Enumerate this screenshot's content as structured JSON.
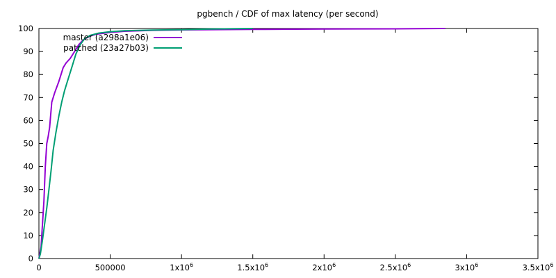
{
  "chart_data": {
    "type": "line",
    "title": "pgbench / CDF of max latency (per second)",
    "xlabel": "",
    "ylabel": "",
    "xlim": [
      0,
      3500000
    ],
    "ylim": [
      0,
      100
    ],
    "grid": false,
    "legend_position": "top-left",
    "x_ticks": [
      {
        "value": 0,
        "base": "0",
        "exp": ""
      },
      {
        "value": 500000,
        "base": "500000",
        "exp": ""
      },
      {
        "value": 1000000,
        "base": "1x10",
        "exp": "6"
      },
      {
        "value": 1500000,
        "base": "1.5x10",
        "exp": "6"
      },
      {
        "value": 2000000,
        "base": "2x10",
        "exp": "6"
      },
      {
        "value": 2500000,
        "base": "2.5x10",
        "exp": "6"
      },
      {
        "value": 3000000,
        "base": "3x10",
        "exp": "6"
      },
      {
        "value": 3500000,
        "base": "3.5x10",
        "exp": "6"
      }
    ],
    "y_ticks": [
      0,
      10,
      20,
      30,
      40,
      50,
      60,
      70,
      80,
      90,
      100
    ],
    "series": [
      {
        "name": "master (a298a1e06)",
        "color": "#9400d3",
        "x": [
          0,
          15000,
          25000,
          35000,
          45000,
          55000,
          65000,
          75000,
          90000,
          110000,
          140000,
          170000,
          190000,
          220000,
          250000,
          280000,
          310000,
          350000,
          400000,
          500000,
          600000,
          800000,
          1000000,
          1500000,
          2000000,
          2500000,
          2850000
        ],
        "y": [
          0,
          5,
          15,
          25,
          40,
          50,
          53,
          57,
          68,
          72,
          77,
          83,
          85,
          87,
          90,
          93,
          95,
          96.5,
          97.5,
          98.3,
          98.8,
          99.2,
          99.4,
          99.6,
          99.75,
          99.85,
          100
        ]
      },
      {
        "name": "patched (23a27b03)",
        "color": "#009e73",
        "x": [
          0,
          10000,
          25000,
          40000,
          55000,
          70000,
          85000,
          100000,
          120000,
          140000,
          160000,
          180000,
          200000,
          230000,
          260000,
          290000,
          320000,
          360000,
          420000,
          500000,
          600000,
          800000,
          1000000,
          1200000,
          1500000
        ],
        "y": [
          0,
          2,
          8,
          15,
          22,
          30,
          38,
          47,
          55,
          62,
          68,
          73,
          77,
          83,
          89,
          93,
          95.5,
          97,
          98,
          98.6,
          99,
          99.3,
          99.5,
          99.8,
          100
        ]
      }
    ]
  }
}
